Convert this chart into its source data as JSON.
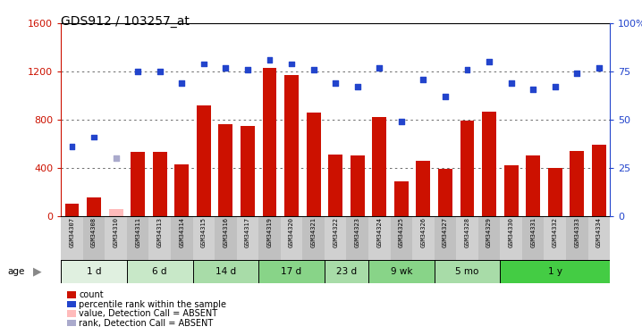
{
  "title": "GDS912 / 103257_at",
  "samples": [
    "GSM34307",
    "GSM34308",
    "GSM34310",
    "GSM34311",
    "GSM34313",
    "GSM34314",
    "GSM34315",
    "GSM34316",
    "GSM34317",
    "GSM34319",
    "GSM34320",
    "GSM34321",
    "GSM34322",
    "GSM34323",
    "GSM34324",
    "GSM34325",
    "GSM34326",
    "GSM34327",
    "GSM34328",
    "GSM34329",
    "GSM34330",
    "GSM34331",
    "GSM34332",
    "GSM34333",
    "GSM34334"
  ],
  "counts": [
    100,
    155,
    60,
    530,
    530,
    430,
    920,
    760,
    750,
    1230,
    1170,
    860,
    510,
    500,
    820,
    290,
    460,
    390,
    790,
    870,
    420,
    500,
    400,
    540,
    590
  ],
  "absent_count_indices": [
    2
  ],
  "ranks_pct": [
    36,
    41,
    30,
    75,
    75,
    69,
    79,
    77,
    76,
    81,
    79,
    76,
    69,
    67,
    77,
    49,
    71,
    62,
    76,
    80,
    69,
    66,
    67,
    74,
    77
  ],
  "absent_rank_indices": [
    2
  ],
  "age_groups": [
    {
      "label": "1 d",
      "start": 0,
      "end": 3,
      "color": "#e0f0e0"
    },
    {
      "label": "6 d",
      "start": 3,
      "end": 6,
      "color": "#c8e8c8"
    },
    {
      "label": "14 d",
      "start": 6,
      "end": 9,
      "color": "#a8dca8"
    },
    {
      "label": "17 d",
      "start": 9,
      "end": 12,
      "color": "#88d488"
    },
    {
      "label": "23 d",
      "start": 12,
      "end": 14,
      "color": "#a8dca8"
    },
    {
      "label": "9 wk",
      "start": 14,
      "end": 17,
      "color": "#88d488"
    },
    {
      "label": "5 mo",
      "start": 17,
      "end": 20,
      "color": "#a8dca8"
    },
    {
      "label": "1 y",
      "start": 20,
      "end": 25,
      "color": "#44cc44"
    }
  ],
  "ylim_left": [
    0,
    1600
  ],
  "ylim_right": [
    0,
    100
  ],
  "yticks_left": [
    0,
    400,
    800,
    1200,
    1600
  ],
  "yticks_right": [
    0,
    25,
    50,
    75,
    100
  ],
  "ytick_right_labels": [
    "0",
    "25",
    "50",
    "75",
    "100%"
  ],
  "bar_color": "#cc1100",
  "absent_bar_color": "#ffbbbb",
  "dot_color": "#2244cc",
  "absent_dot_color": "#aaaacc",
  "bg_color": "#ffffff",
  "grid_color": "#555555",
  "label_bg_even": "#d0d0d0",
  "label_bg_odd": "#c0c0c0",
  "legend_items": [
    {
      "label": "count",
      "color": "#cc1100"
    },
    {
      "label": "percentile rank within the sample",
      "color": "#2244cc"
    },
    {
      "label": "value, Detection Call = ABSENT",
      "color": "#ffbbbb"
    },
    {
      "label": "rank, Detection Call = ABSENT",
      "color": "#aaaacc"
    }
  ]
}
